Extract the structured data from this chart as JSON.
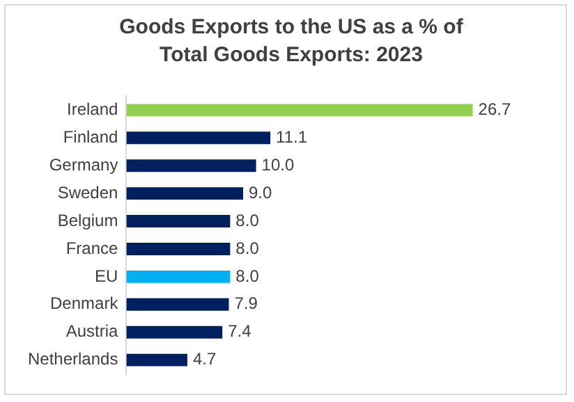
{
  "chart_data": {
    "type": "bar",
    "orientation": "horizontal",
    "title": "Goods Exports to the US as a % of Total Goods Exports:  2023",
    "categories": [
      "Ireland",
      "Finland",
      "Germany",
      "Sweden",
      "Belgium",
      "France",
      "EU",
      "Denmark",
      "Austria",
      "Netherlands"
    ],
    "values": [
      26.7,
      11.1,
      10.0,
      9.0,
      8.0,
      8.0,
      8.0,
      7.9,
      7.4,
      4.7
    ],
    "value_labels": [
      "26.7",
      "11.1",
      "10.0",
      "9.0",
      "8.0",
      "8.0",
      "8.0",
      "7.9",
      "7.4",
      "4.7"
    ],
    "colors": [
      "#92d050",
      "#002060",
      "#002060",
      "#002060",
      "#002060",
      "#002060",
      "#00b0f0",
      "#002060",
      "#002060",
      "#002060"
    ],
    "tick_labels": "y"
  }
}
